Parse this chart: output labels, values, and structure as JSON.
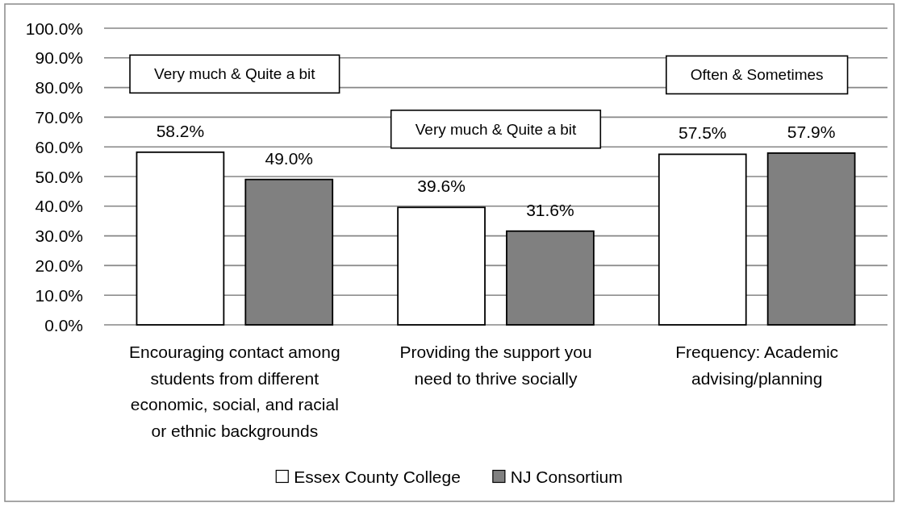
{
  "chart_data": {
    "type": "bar",
    "categories": [
      "Encouraging contact among students from different economic, social, and racial or ethnic backgrounds",
      "Providing the support you need to thrive socially",
      "Frequency: Academic advising/planning"
    ],
    "series": [
      {
        "name": "Essex County College",
        "color": "#ffffff",
        "values": [
          58.2,
          39.6,
          57.5
        ],
        "value_labels": [
          "58.2%",
          "39.6%",
          "57.5%"
        ]
      },
      {
        "name": "NJ Consortium",
        "color": "#808080",
        "values": [
          49.0,
          31.6,
          57.9
        ],
        "value_labels": [
          "49.0%",
          "31.6%",
          "57.9%"
        ]
      }
    ],
    "ylim": [
      0,
      100
    ],
    "yticks": [
      {
        "value": 0,
        "label": "0.0%"
      },
      {
        "value": 10,
        "label": "10.0%"
      },
      {
        "value": 20,
        "label": "20.0%"
      },
      {
        "value": 30,
        "label": "30.0%"
      },
      {
        "value": 40,
        "label": "40.0%"
      },
      {
        "value": 50,
        "label": "50.0%"
      },
      {
        "value": 60,
        "label": "60.0%"
      },
      {
        "value": 70,
        "label": "70.0%"
      },
      {
        "value": 80,
        "label": "80.0%"
      },
      {
        "value": 90,
        "label": "90.0%"
      },
      {
        "value": 100,
        "label": "100.0%"
      }
    ],
    "grid": "y",
    "legend": "bottom",
    "annotations": [
      "Very much & Quite a bit",
      "Very much & Quite a bit",
      "Often & Sometimes"
    ]
  }
}
